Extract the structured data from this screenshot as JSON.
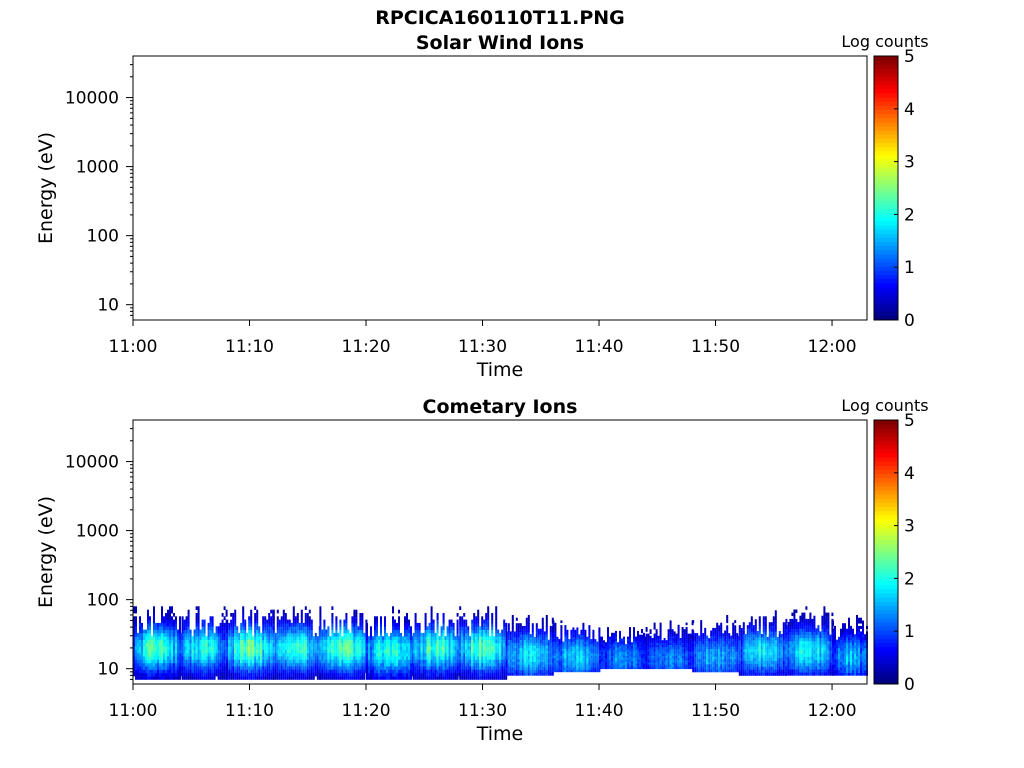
{
  "figure": {
    "filename": "RPCICA160110T11.PNG"
  },
  "chart_data": [
    {
      "type": "heatmap",
      "title": "Solar Wind Ions",
      "xlabel": "Time",
      "ylabel": "Energy (eV)",
      "x_ticks": [
        "11:00",
        "11:10",
        "11:20",
        "11:30",
        "11:40",
        "11:50",
        "12:00"
      ],
      "x_range": [
        "11:00",
        "12:03"
      ],
      "y_scale": "log",
      "y_ticks": [
        10,
        100,
        1000,
        10000
      ],
      "y_tick_labels": [
        "10",
        "100",
        "1000",
        "10000"
      ],
      "ylim": [
        6,
        40000
      ],
      "colorbar": {
        "label": "Log counts",
        "ticks": [
          "0",
          "1",
          "2",
          "3",
          "4",
          "5"
        ],
        "range": [
          0,
          5
        ],
        "colormap": "jet"
      },
      "grid": false,
      "bands": []
    },
    {
      "type": "heatmap",
      "title": "Cometary Ions",
      "xlabel": "Time",
      "ylabel": "Energy (eV)",
      "x_ticks": [
        "11:00",
        "11:10",
        "11:20",
        "11:30",
        "11:40",
        "11:50",
        "12:00"
      ],
      "x_range": [
        "11:00",
        "12:03"
      ],
      "y_scale": "log",
      "y_ticks": [
        10,
        100,
        1000,
        10000
      ],
      "y_tick_labels": [
        "10",
        "100",
        "1000",
        "10000"
      ],
      "ylim": [
        6,
        40000
      ],
      "colorbar": {
        "label": "Log counts",
        "ticks": [
          "0",
          "1",
          "2",
          "3",
          "4",
          "5"
        ],
        "range": [
          0,
          5
        ],
        "colormap": "jet"
      },
      "grid": false,
      "bands": [
        {
          "start": "11:00",
          "end": "11:04",
          "e_min": 7,
          "e_max": 80,
          "e_peak": 20,
          "peak_log_counts": 2.2
        },
        {
          "start": "11:04",
          "end": "11:08",
          "e_min": 7,
          "e_max": 80,
          "e_peak": 20,
          "peak_log_counts": 2.0
        },
        {
          "start": "11:08",
          "end": "11:12",
          "e_min": 7,
          "e_max": 80,
          "e_peak": 20,
          "peak_log_counts": 2.3
        },
        {
          "start": "11:12",
          "end": "11:16",
          "e_min": 7,
          "e_max": 80,
          "e_peak": 20,
          "peak_log_counts": 2.0
        },
        {
          "start": "11:16",
          "end": "11:20",
          "e_min": 7,
          "e_max": 80,
          "e_peak": 20,
          "peak_log_counts": 2.3
        },
        {
          "start": "11:20",
          "end": "11:24",
          "e_min": 7,
          "e_max": 80,
          "e_peak": 18,
          "peak_log_counts": 2.1
        },
        {
          "start": "11:24",
          "end": "11:28",
          "e_min": 7,
          "e_max": 80,
          "e_peak": 20,
          "peak_log_counts": 2.2
        },
        {
          "start": "11:28",
          "end": "11:32",
          "e_min": 7,
          "e_max": 80,
          "e_peak": 20,
          "peak_log_counts": 2.3
        },
        {
          "start": "11:32",
          "end": "11:36",
          "e_min": 8,
          "e_max": 60,
          "e_peak": 16,
          "peak_log_counts": 1.8
        },
        {
          "start": "11:36",
          "end": "11:40",
          "e_min": 9,
          "e_max": 50,
          "e_peak": 15,
          "peak_log_counts": 1.6
        },
        {
          "start": "11:40",
          "end": "11:44",
          "e_min": 10,
          "e_max": 40,
          "e_peak": 14,
          "peak_log_counts": 1.3
        },
        {
          "start": "11:44",
          "end": "11:48",
          "e_min": 10,
          "e_max": 50,
          "e_peak": 14,
          "peak_log_counts": 1.3
        },
        {
          "start": "11:48",
          "end": "11:52",
          "e_min": 9,
          "e_max": 60,
          "e_peak": 15,
          "peak_log_counts": 1.5
        },
        {
          "start": "11:52",
          "end": "11:56",
          "e_min": 8,
          "e_max": 70,
          "e_peak": 18,
          "peak_log_counts": 1.8
        },
        {
          "start": "11:56",
          "end": "12:00",
          "e_min": 8,
          "e_max": 80,
          "e_peak": 18,
          "peak_log_counts": 1.9
        },
        {
          "start": "12:00",
          "end": "12:03",
          "e_min": 8,
          "e_max": 60,
          "e_peak": 15,
          "peak_log_counts": 1.5
        }
      ]
    }
  ]
}
